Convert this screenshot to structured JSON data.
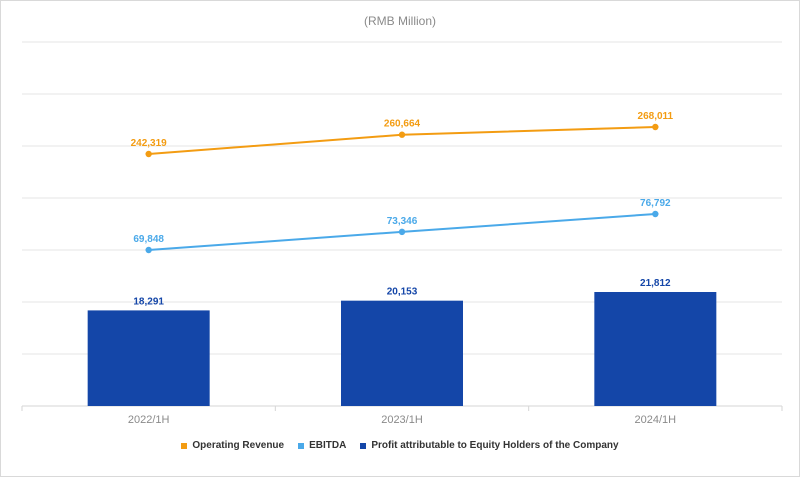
{
  "chart_data": {
    "type": "bar",
    "title": "(RMB Million)",
    "categories": [
      "2022/1H",
      "2023/1H",
      "2024/1H"
    ],
    "series": [
      {
        "name": "Operating Revenue",
        "kind": "line",
        "color": "#f39c12",
        "values": [
          242319,
          260664,
          268011
        ],
        "labels": [
          "242,319",
          "260,664",
          "268,011"
        ]
      },
      {
        "name": "EBITDA",
        "kind": "line",
        "color": "#4aa9e9",
        "values": [
          69848,
          73346,
          76792
        ],
        "labels": [
          "69,848",
          "73,346",
          "76,792"
        ]
      },
      {
        "name": "Profit attributable to Equity Holders of the Company",
        "kind": "bar",
        "color": "#1446a8",
        "values": [
          18291,
          20153,
          21812
        ],
        "labels": [
          "18,291",
          "20,153",
          "21,812"
        ]
      }
    ],
    "grid": true,
    "legend_position": "bottom",
    "axis_color": "#d6d6d6",
    "grid_color": "#e6e6e6",
    "tick_label_color": "#8a8a8a"
  }
}
